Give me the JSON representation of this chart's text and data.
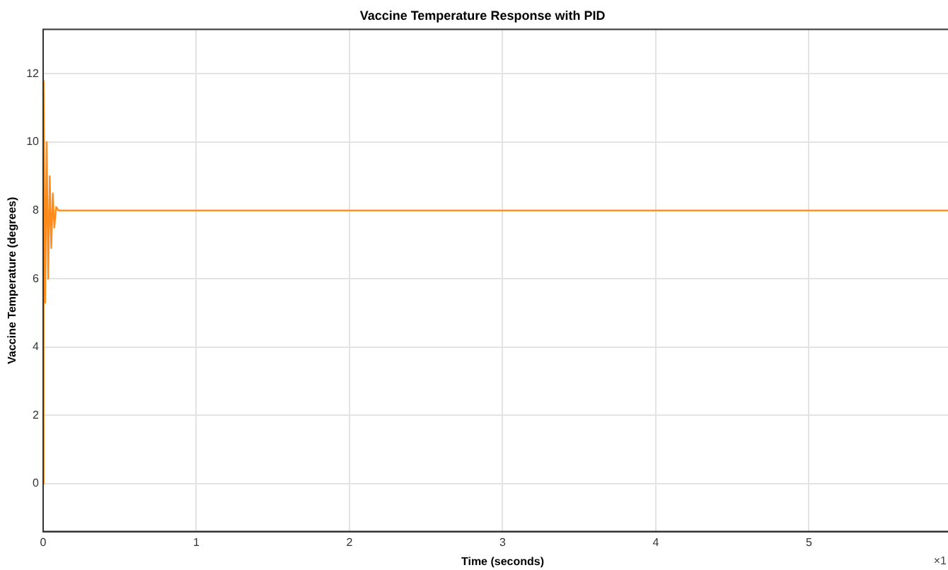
{
  "chart_data": {
    "type": "line",
    "title": "Vaccine Temperature Response with PID",
    "xlabel": "Time (seconds)",
    "ylabel": "Vaccine Temperature (degrees)",
    "x": [
      0,
      0.003,
      0.013,
      0.023,
      0.033,
      0.043,
      0.053,
      0.063,
      0.073,
      0.085,
      0.1,
      6
    ],
    "series": [
      {
        "color": "#ff8c1a",
        "values": [
          0,
          11.8,
          5.3,
          10,
          6,
          9,
          6.9,
          8.5,
          7.5,
          8.1,
          8,
          8
        ]
      }
    ],
    "xlim": [
      0,
      6
    ],
    "xticks": [
      0,
      1,
      2,
      3,
      4,
      5
    ],
    "ylim": [
      -1.4,
      13.3
    ],
    "yticks": [
      0,
      2,
      4,
      6,
      8,
      10,
      12
    ],
    "grid": true,
    "marker": "none",
    "line_style": "solid",
    "annotations": [
      "×1"
    ]
  }
}
